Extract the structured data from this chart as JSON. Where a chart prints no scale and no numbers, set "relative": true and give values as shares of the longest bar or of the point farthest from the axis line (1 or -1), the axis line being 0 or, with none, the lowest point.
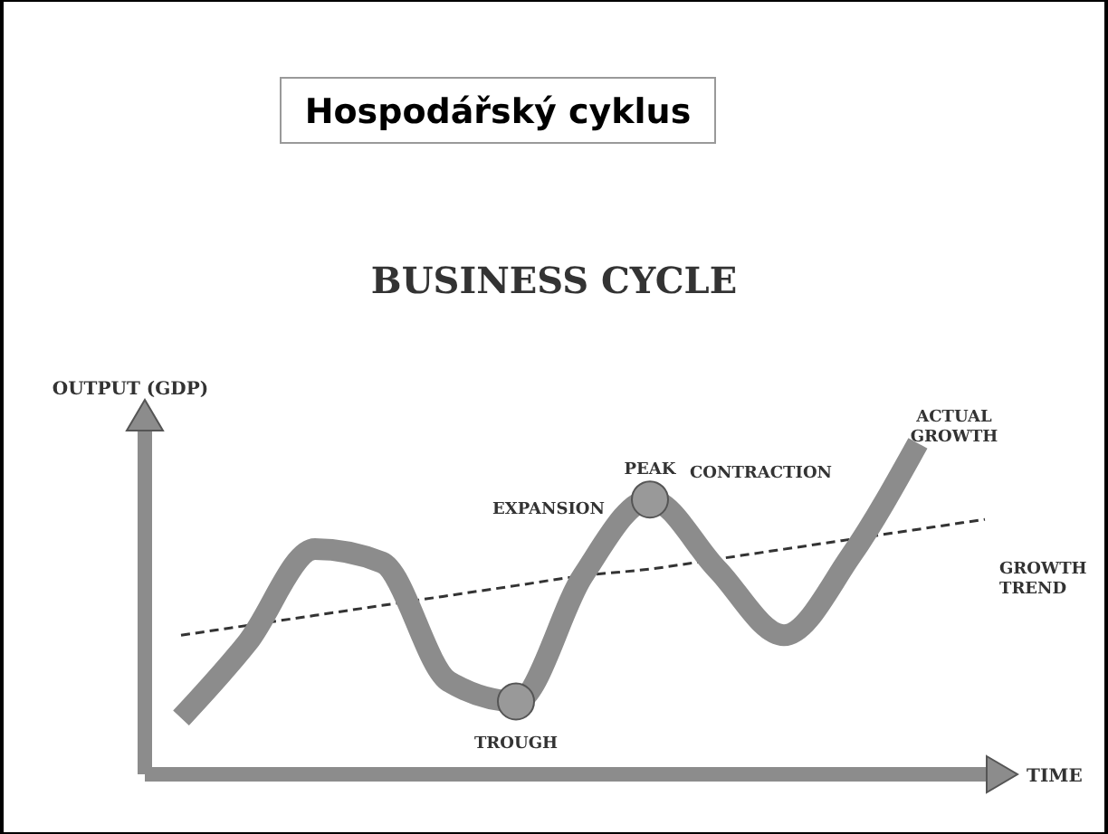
{
  "chart_data": {
    "type": "line",
    "title": "Hospodářský cyklus",
    "subtitle": "BUSINESS CYCLE",
    "xlabel": "TIME",
    "ylabel": "OUTPUT (GDP)",
    "relative": true,
    "marker": "none",
    "categories": [
      null,
      null,
      null,
      null,
      null,
      null,
      null,
      null,
      null,
      null,
      null,
      null,
      null
    ],
    "series": [
      {
        "name": "ACTUAL GROWTH",
        "color": "#8c8c8c",
        "line_style": "solid",
        "values": [
          0.17,
          0.4,
          0.68,
          0.64,
          0.28,
          0.22,
          0.6,
          0.83,
          0.62,
          0.42,
          0.66,
          1.0,
          null
        ]
      },
      {
        "name": "GROWTH TREND",
        "color": "#333333",
        "line_style": "dashed",
        "values": [
          0.42,
          0.45,
          0.48,
          0.51,
          0.54,
          0.57,
          0.6,
          0.62,
          0.65,
          0.68,
          0.71,
          0.74,
          0.77
        ]
      }
    ],
    "annotations": [
      "EXPANSION",
      "PEAK",
      "CONTRACTION",
      "TROUGH"
    ]
  }
}
